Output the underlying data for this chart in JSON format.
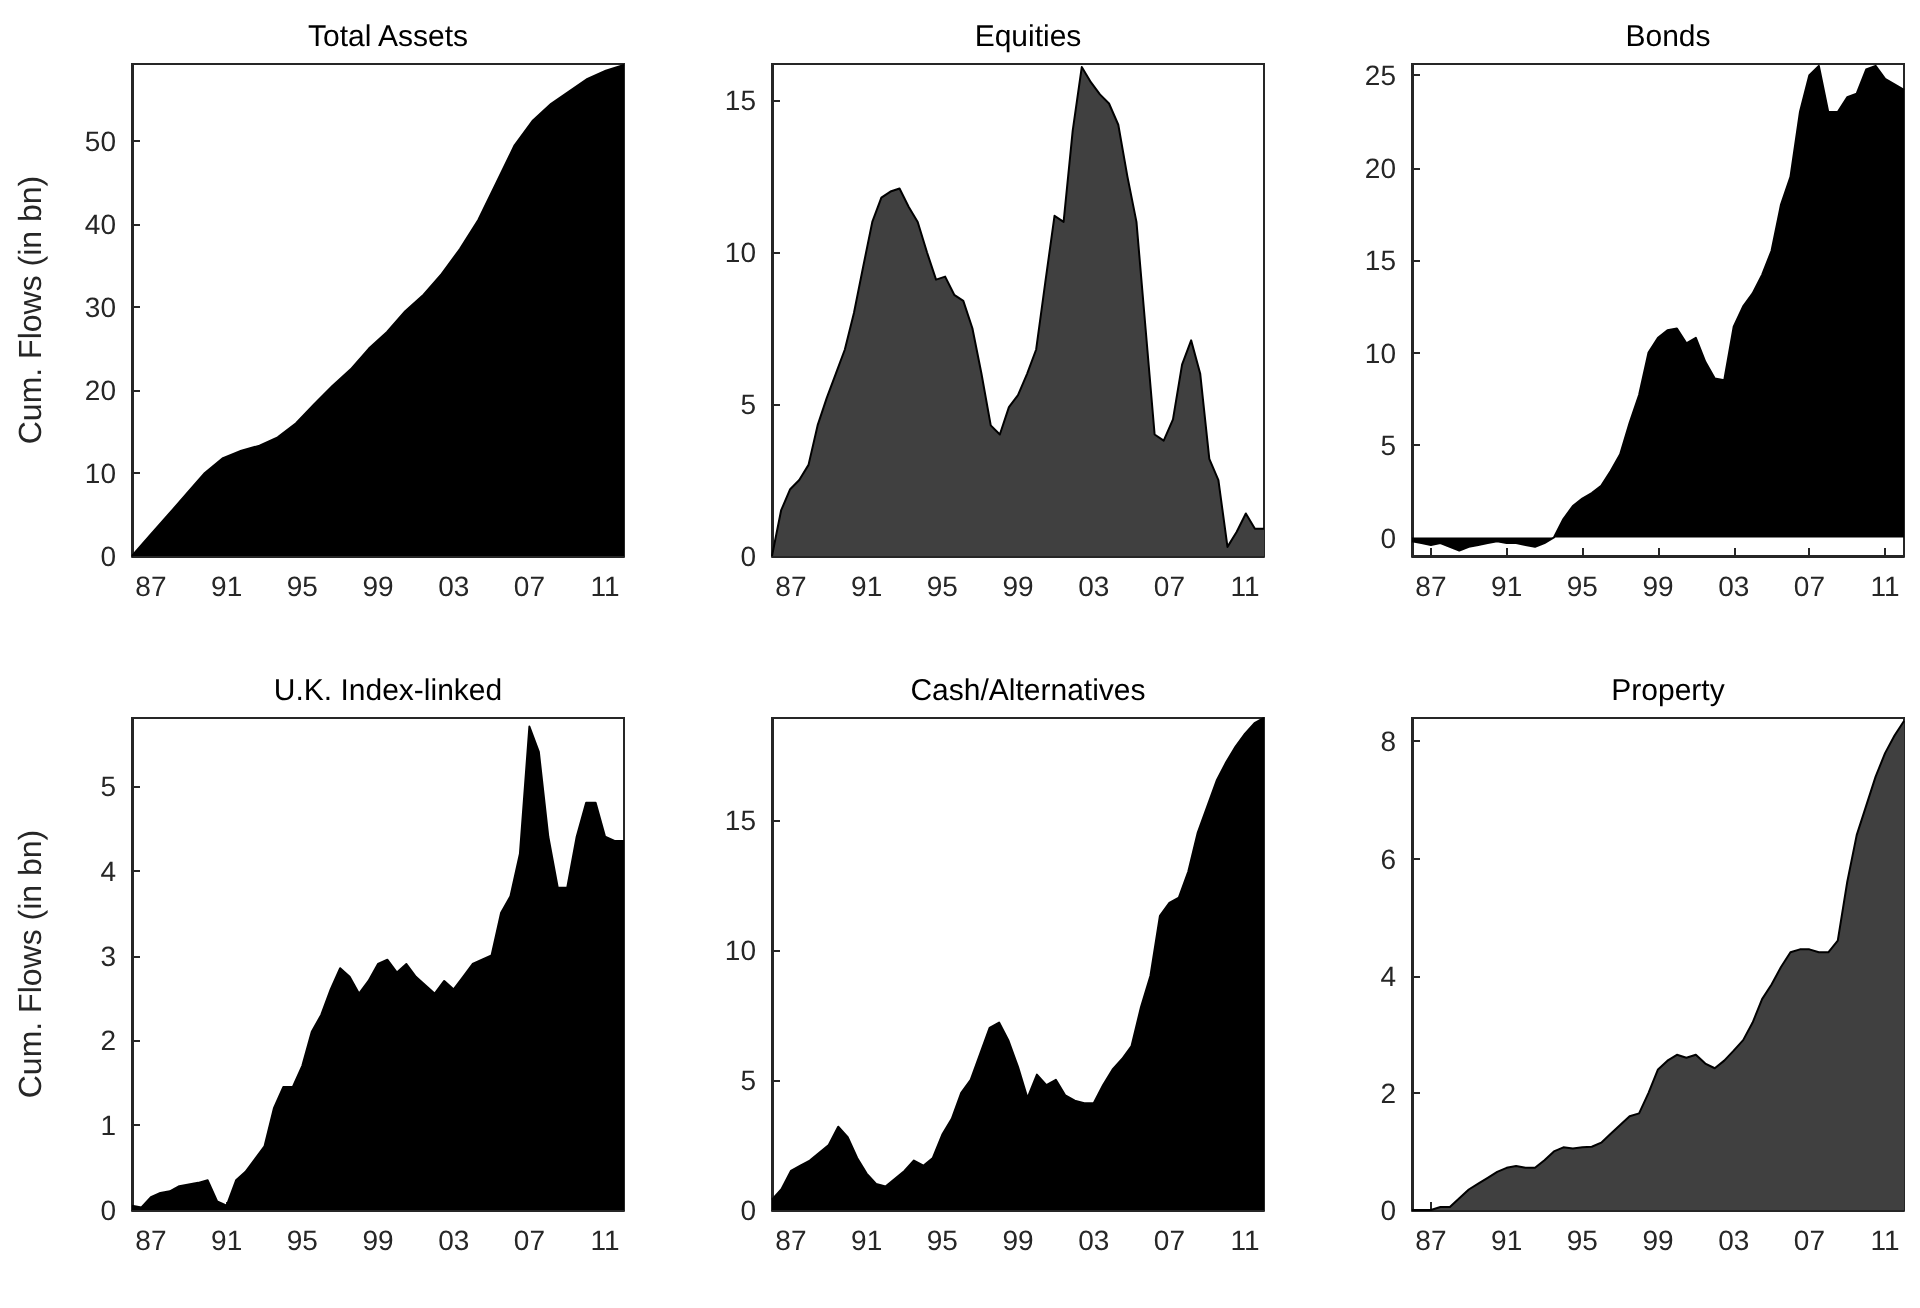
{
  "chart_data": [
    {
      "type": "area",
      "title": "Total Assets",
      "ylabel": "Cum. Flows (in bn)",
      "xlim": [
        1986,
        2012
      ],
      "ylim": [
        0,
        59.3
      ],
      "yticks": [
        0,
        10,
        20,
        30,
        40,
        50
      ],
      "xticks": [
        {
          "value": 1987,
          "label": "87"
        },
        {
          "value": 1991,
          "label": "91"
        },
        {
          "value": 1995,
          "label": "95"
        },
        {
          "value": 1999,
          "label": "99"
        },
        {
          "value": 2003,
          "label": "03"
        },
        {
          "value": 2007,
          "label": "07"
        },
        {
          "value": 2011,
          "label": "11"
        }
      ],
      "x": [
        1986,
        1986.96,
        1987.93,
        1988.89,
        1989.85,
        1990.81,
        1991.78,
        1992.74,
        1993.7,
        1994.67,
        1995.63,
        1996.59,
        1997.56,
        1998.52,
        1999.48,
        2000.44,
        2001.41,
        2002.37,
        2003.33,
        2004.3,
        2005.26,
        2006.22,
        2007.19,
        2008.15,
        2009.11,
        2010.07,
        2011.04,
        2012
      ],
      "series": [
        {
          "color": "#000000",
          "values": [
            0,
            2.5,
            5,
            7.5,
            10,
            11.8,
            12.7,
            13.3,
            14.3,
            16,
            18.3,
            20.5,
            22.5,
            25,
            27,
            29.5,
            31.5,
            34,
            37,
            40.5,
            45,
            49.5,
            52.5,
            54.5,
            56,
            57.5,
            58.5,
            59.2
          ]
        }
      ]
    },
    {
      "type": "area",
      "title": "Equities",
      "xlim": [
        1986,
        2012
      ],
      "ylim": [
        0,
        16.2
      ],
      "yticks": [
        0,
        5,
        10,
        15
      ],
      "xticks": [
        {
          "value": 1987,
          "label": "87"
        },
        {
          "value": 1991,
          "label": "91"
        },
        {
          "value": 1995,
          "label": "95"
        },
        {
          "value": 1999,
          "label": "99"
        },
        {
          "value": 2003,
          "label": "03"
        },
        {
          "value": 2007,
          "label": "07"
        },
        {
          "value": 2011,
          "label": "11"
        }
      ],
      "x": [
        1986,
        1986.48,
        1986.96,
        1987.44,
        1987.93,
        1988.41,
        1988.89,
        1989.37,
        1989.85,
        1990.33,
        1990.81,
        1991.3,
        1991.78,
        1992.26,
        1992.74,
        1993.22,
        1993.7,
        1994.19,
        1994.67,
        1995.15,
        1995.63,
        1996.11,
        1996.59,
        1997.07,
        1997.56,
        1998.04,
        1998.52,
        1999,
        1999.48,
        1999.96,
        2000.44,
        2000.93,
        2001.41,
        2001.89,
        2002.37,
        2002.85,
        2003.33,
        2003.81,
        2004.3,
        2004.78,
        2005.26,
        2005.74,
        2006.22,
        2006.7,
        2007.19,
        2007.67,
        2008.15,
        2008.63,
        2009.11,
        2009.59,
        2010.07,
        2010.56,
        2011.04,
        2011.52,
        2012
      ],
      "series": [
        {
          "color": "#404040",
          "values": [
            0,
            1.5,
            2.2,
            2.5,
            3,
            4.3,
            5.2,
            6,
            6.8,
            8,
            9.5,
            11,
            11.8,
            12,
            12.1,
            11.5,
            11,
            10,
            9.1,
            9.2,
            8.6,
            8.4,
            7.5,
            6,
            4.3,
            4,
            4.9,
            5.3,
            6,
            6.8,
            9,
            11.2,
            11,
            14,
            16.1,
            15.6,
            15.2,
            14.9,
            14.2,
            12.5,
            11,
            7.5,
            4,
            3.8,
            4.5,
            6.3,
            7.1,
            6,
            3.2,
            2.5,
            0.3,
            0.8,
            1.4,
            0.9,
            0.9
          ]
        }
      ]
    },
    {
      "type": "area",
      "title": "Bonds",
      "xlim": [
        1986,
        2012
      ],
      "ylim": [
        -1,
        25.6
      ],
      "yticks": [
        0,
        5,
        10,
        15,
        20,
        25
      ],
      "xticks": [
        {
          "value": 1987,
          "label": "87"
        },
        {
          "value": 1991,
          "label": "91"
        },
        {
          "value": 1995,
          "label": "95"
        },
        {
          "value": 1999,
          "label": "99"
        },
        {
          "value": 2003,
          "label": "03"
        },
        {
          "value": 2007,
          "label": "07"
        },
        {
          "value": 2011,
          "label": "11"
        }
      ],
      "series": [
        {
          "color": "#000000",
          "x": [
            1986,
            1986.5,
            1987,
            1987.5,
            1988,
            1988.5,
            1989,
            1989.5,
            1990,
            1990.5,
            1991,
            1991.5,
            1992,
            1992.5,
            1993,
            1993.5,
            1994,
            1994.5,
            1995,
            1995.5,
            1996,
            1996.5,
            1997,
            1997.5,
            1998,
            1998.5,
            1999,
            1999.5,
            2000,
            2000.5,
            2001,
            2001.5,
            2002,
            2002.5,
            2003,
            2003.5,
            2004,
            2004.5,
            2005,
            2005.5,
            2006,
            2006.5,
            2007,
            2007.5,
            2008,
            2008.5,
            2009,
            2009.5,
            2010,
            2010.5,
            2011,
            2011.5,
            2012
          ],
          "values": [
            -0.2,
            -0.3,
            -0.4,
            -0.3,
            -0.5,
            -0.7,
            -0.5,
            -0.4,
            -0.3,
            -0.2,
            -0.3,
            -0.3,
            -0.4,
            -0.5,
            -0.3,
            0,
            1,
            1.7,
            2.1,
            2.4,
            2.8,
            3.6,
            4.5,
            6.2,
            7.7,
            10,
            10.8,
            11.2,
            11.3,
            10.5,
            10.8,
            9.5,
            8.6,
            8.5,
            11.4,
            12.5,
            13.2,
            14.2,
            15.5,
            18,
            19.5,
            23,
            25,
            25.5,
            23,
            23,
            23.8,
            24,
            25.3,
            25.5,
            24.8,
            24.5,
            24.2
          ]
        }
      ]
    },
    {
      "type": "area",
      "title": "U.K. Index-linked",
      "ylabel": "Cum. Flows (in bn)",
      "xlim": [
        1986,
        2012
      ],
      "ylim": [
        0,
        5.8
      ],
      "yticks": [
        0,
        1,
        2,
        3,
        4,
        5
      ],
      "xticks": [
        {
          "value": 1987,
          "label": "87"
        },
        {
          "value": 1991,
          "label": "91"
        },
        {
          "value": 1995,
          "label": "95"
        },
        {
          "value": 1999,
          "label": "99"
        },
        {
          "value": 2003,
          "label": "03"
        },
        {
          "value": 2007,
          "label": "07"
        },
        {
          "value": 2011,
          "label": "11"
        }
      ],
      "series": [
        {
          "color": "#000000",
          "x": [
            1986,
            1986.5,
            1987,
            1987.5,
            1988,
            1988.5,
            1989,
            1989.5,
            1990,
            1990.5,
            1991,
            1991.5,
            1992,
            1992.5,
            1993,
            1993.5,
            1994,
            1994.5,
            1995,
            1995.5,
            1996,
            1996.5,
            1997,
            1997.5,
            1998,
            1998.5,
            1999,
            1999.5,
            2000,
            2000.5,
            2001,
            2001.5,
            2002,
            2002.5,
            2003,
            2003.5,
            2004,
            2004.5,
            2005,
            2005.5,
            2006,
            2006.5,
            2007,
            2007.5,
            2008,
            2008.5,
            2009,
            2009.5,
            2010,
            2010.5,
            2011,
            2011.5,
            2012
          ],
          "values": [
            0.05,
            0.03,
            0.15,
            0.2,
            0.22,
            0.28,
            0.3,
            0.32,
            0.35,
            0.1,
            0.05,
            0.35,
            0.45,
            0.6,
            0.75,
            1.2,
            1.45,
            1.45,
            1.7,
            2.1,
            2.3,
            2.6,
            2.85,
            2.75,
            2.55,
            2.7,
            2.9,
            2.95,
            2.8,
            2.9,
            2.75,
            2.65,
            2.55,
            2.7,
            2.6,
            2.75,
            2.9,
            2.95,
            3,
            3.5,
            3.7,
            4.2,
            5.7,
            5.4,
            4.4,
            3.8,
            3.8,
            4.4,
            4.8,
            4.8,
            4.4,
            4.35,
            4.35
          ]
        }
      ]
    },
    {
      "type": "area",
      "title": "Cash/Alternatives",
      "xlim": [
        1986,
        2012
      ],
      "ylim": [
        0,
        18.9
      ],
      "yticks": [
        0,
        5,
        10,
        15
      ],
      "xticks": [
        {
          "value": 1987,
          "label": "87"
        },
        {
          "value": 1991,
          "label": "91"
        },
        {
          "value": 1995,
          "label": "95"
        },
        {
          "value": 1999,
          "label": "99"
        },
        {
          "value": 2003,
          "label": "03"
        },
        {
          "value": 2007,
          "label": "07"
        },
        {
          "value": 2011,
          "label": "11"
        }
      ],
      "x": [
        1986,
        1986.5,
        1987,
        1987.5,
        1988,
        1988.5,
        1989,
        1989.5,
        1990,
        1990.5,
        1991,
        1991.5,
        1992,
        1992.5,
        1993,
        1993.5,
        1994,
        1994.5,
        1995,
        1995.5,
        1996,
        1996.5,
        1997,
        1997.5,
        1998,
        1998.5,
        1999,
        1999.5,
        2000,
        2000.5,
        2001,
        2001.5,
        2002,
        2002.5,
        2003,
        2003.5,
        2004,
        2004.5,
        2005,
        2005.5,
        2006,
        2006.5,
        2007,
        2007.5,
        2008,
        2008.5,
        2009,
        2009.5,
        2010,
        2010.5,
        2011,
        2011.5,
        2012
      ],
      "series": [
        {
          "color": "#000000",
          "values": [
            0.4,
            0.8,
            1.5,
            1.7,
            1.9,
            2.2,
            2.5,
            3.2,
            2.8,
            2,
            1.4,
            1,
            0.9,
            1.2,
            1.5,
            1.9,
            1.7,
            2,
            2.9,
            3.5,
            4.5,
            5,
            6,
            7,
            7.2,
            6.5,
            5.5,
            4.3,
            5.2,
            4.8,
            5,
            4.4,
            4.2,
            4.1,
            4.1,
            4.8,
            5.4,
            5.8,
            6.3,
            7.8,
            9,
            11.3,
            11.8,
            12,
            13,
            14.5,
            15.5,
            16.5,
            17.2,
            17.8,
            18.3,
            18.7,
            18.9
          ]
        }
      ]
    },
    {
      "type": "area",
      "title": "Property",
      "xlim": [
        1986,
        2012
      ],
      "ylim": [
        0,
        8.4
      ],
      "yticks": [
        0,
        2,
        4,
        6,
        8
      ],
      "xticks": [
        {
          "value": 1987,
          "label": "87"
        },
        {
          "value": 1991,
          "label": "91"
        },
        {
          "value": 1995,
          "label": "95"
        },
        {
          "value": 1999,
          "label": "99"
        },
        {
          "value": 2003,
          "label": "03"
        },
        {
          "value": 2007,
          "label": "07"
        },
        {
          "value": 2011,
          "label": "11"
        }
      ],
      "x": [
        1986,
        1986.5,
        1987,
        1987.5,
        1988,
        1988.5,
        1989,
        1989.5,
        1990,
        1990.5,
        1991,
        1991.5,
        1992,
        1992.5,
        1993,
        1993.5,
        1994,
        1994.5,
        1995,
        1995.5,
        1996,
        1996.5,
        1997,
        1997.5,
        1998,
        1998.5,
        1999,
        1999.5,
        2000,
        2000.5,
        2001,
        2001.5,
        2002,
        2002.5,
        2003,
        2003.5,
        2004,
        2004.5,
        2005,
        2005.5,
        2006,
        2006.5,
        2007,
        2007.5,
        2008,
        2008.5,
        2009,
        2009.5,
        2010,
        2010.5,
        2011,
        2011.5,
        2012
      ],
      "series": [
        {
          "color": "#404040",
          "values": [
            0,
            0,
            0,
            0.05,
            0.05,
            0.2,
            0.35,
            0.45,
            0.55,
            0.65,
            0.72,
            0.75,
            0.72,
            0.72,
            0.85,
            1,
            1.07,
            1.05,
            1.07,
            1.08,
            1.15,
            1.3,
            1.45,
            1.6,
            1.65,
            2,
            2.4,
            2.55,
            2.65,
            2.6,
            2.65,
            2.5,
            2.42,
            2.55,
            2.72,
            2.9,
            3.2,
            3.6,
            3.85,
            4.15,
            4.4,
            4.45,
            4.45,
            4.4,
            4.4,
            4.6,
            5.6,
            6.4,
            6.9,
            7.4,
            7.8,
            8.1,
            8.35
          ]
        }
      ]
    }
  ]
}
